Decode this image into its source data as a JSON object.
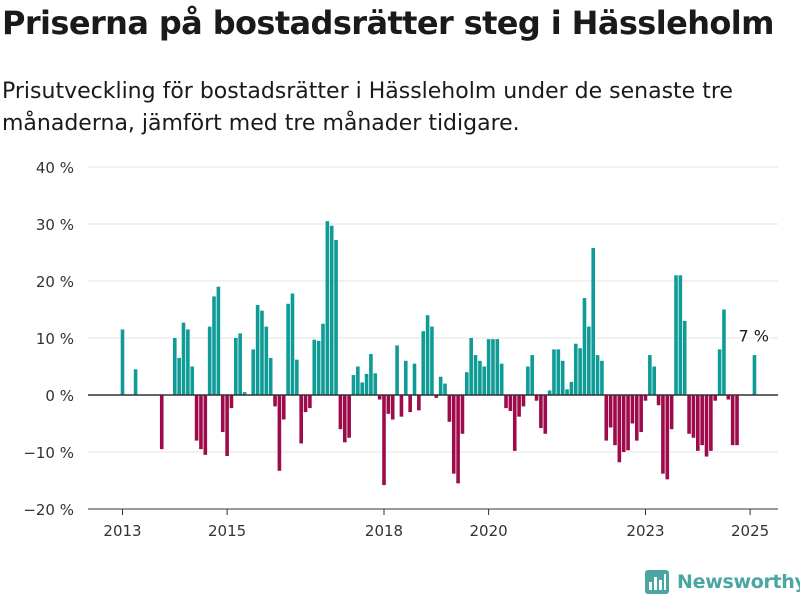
{
  "title": "Priserna på bostadsrätter steg i Hässleholm",
  "subtitle": "Prisutveckling för bostadsrätter i Hässleholm under de senaste tre månaderna, jämfört med tre månader tidigare.",
  "brand": {
    "name": "Newsworthy",
    "icon": "bar-chart-logo-icon"
  },
  "colors": {
    "positive": "#0f9b96",
    "negative": "#9e0a4a",
    "grid": "#e3e3e3",
    "zero_line": "#333333",
    "brand": "#4aa6a0"
  },
  "chart_data": {
    "type": "bar",
    "title": "Priserna på bostadsrätter steg i Hässleholm",
    "subtitle": "Prisutveckling för bostadsrätter i Hässleholm under de senaste tre månaderna, jämfört med tre månader tidigare.",
    "xlabel": "",
    "ylabel": "",
    "y_unit": "%",
    "ylim": [
      -20,
      40
    ],
    "y_ticks": [
      -20,
      -10,
      0,
      10,
      20,
      30,
      40
    ],
    "y_tick_labels": [
      "−20 %",
      "−10 %",
      "0 %",
      "10 %",
      "20 %",
      "30 %",
      "40 %"
    ],
    "x_ticks": [
      2013,
      2015,
      2018,
      2020,
      2023,
      2025
    ],
    "x_tick_labels": [
      "2013",
      "2015",
      "2018",
      "2020",
      "2023",
      "2025"
    ],
    "grid": true,
    "annotation": {
      "text": "7 %",
      "month": "2025-02",
      "value": 7
    },
    "data": [
      [
        "2013-01",
        11.5
      ],
      [
        "2013-04",
        4.5
      ],
      [
        "2013-10",
        -9.5
      ],
      [
        "2014-01",
        10
      ],
      [
        "2014-02",
        6.5
      ],
      [
        "2014-03",
        12.7
      ],
      [
        "2014-04",
        11.5
      ],
      [
        "2014-05",
        5
      ],
      [
        "2014-06",
        -8
      ],
      [
        "2014-07",
        -9.5
      ],
      [
        "2014-08",
        -10.5
      ],
      [
        "2014-09",
        12
      ],
      [
        "2014-10",
        17.3
      ],
      [
        "2014-11",
        19
      ],
      [
        "2014-12",
        -6.5
      ],
      [
        "2015-01",
        -10.7
      ],
      [
        "2015-02",
        -2.3
      ],
      [
        "2015-03",
        10
      ],
      [
        "2015-04",
        10.8
      ],
      [
        "2015-05",
        0.5
      ],
      [
        "2015-07",
        8
      ],
      [
        "2015-08",
        15.8
      ],
      [
        "2015-09",
        14.8
      ],
      [
        "2015-10",
        12
      ],
      [
        "2015-11",
        6.5
      ],
      [
        "2015-12",
        -2
      ],
      [
        "2016-01",
        -13.3
      ],
      [
        "2016-02",
        -4.3
      ],
      [
        "2016-03",
        16
      ],
      [
        "2016-04",
        17.8
      ],
      [
        "2016-05",
        6.2
      ],
      [
        "2016-06",
        -8.5
      ],
      [
        "2016-07",
        -3
      ],
      [
        "2016-08",
        -2.3
      ],
      [
        "2016-09",
        9.7
      ],
      [
        "2016-10",
        9.5
      ],
      [
        "2016-11",
        12.5
      ],
      [
        "2016-12",
        30.5
      ],
      [
        "2017-01",
        29.7
      ],
      [
        "2017-02",
        27.2
      ],
      [
        "2017-03",
        -6
      ],
      [
        "2017-04",
        -8.3
      ],
      [
        "2017-05",
        -7.5
      ],
      [
        "2017-06",
        3.5
      ],
      [
        "2017-07",
        5
      ],
      [
        "2017-08",
        2.2
      ],
      [
        "2017-09",
        3.7
      ],
      [
        "2017-10",
        7.2
      ],
      [
        "2017-11",
        3.8
      ],
      [
        "2017-12",
        -0.8
      ],
      [
        "2018-01",
        -15.8
      ],
      [
        "2018-02",
        -3.3
      ],
      [
        "2018-03",
        -4.3
      ],
      [
        "2018-04",
        8.7
      ],
      [
        "2018-05",
        -3.8
      ],
      [
        "2018-06",
        6
      ],
      [
        "2018-07",
        -3
      ],
      [
        "2018-08",
        5.5
      ],
      [
        "2018-09",
        -2.7
      ],
      [
        "2018-10",
        11.2
      ],
      [
        "2018-11",
        14
      ],
      [
        "2018-12",
        12
      ],
      [
        "2019-01",
        -0.5
      ],
      [
        "2019-02",
        3.2
      ],
      [
        "2019-03",
        2
      ],
      [
        "2019-04",
        -4.7
      ],
      [
        "2019-05",
        -13.8
      ],
      [
        "2019-06",
        -15.5
      ],
      [
        "2019-07",
        -6.8
      ],
      [
        "2019-08",
        4
      ],
      [
        "2019-09",
        10
      ],
      [
        "2019-10",
        7
      ],
      [
        "2019-11",
        6
      ],
      [
        "2019-12",
        5
      ],
      [
        "2020-01",
        9.8
      ],
      [
        "2020-02",
        9.8
      ],
      [
        "2020-03",
        9.8
      ],
      [
        "2020-04",
        5.5
      ],
      [
        "2020-05",
        -2.3
      ],
      [
        "2020-06",
        -2.8
      ],
      [
        "2020-07",
        -9.8
      ],
      [
        "2020-08",
        -3.8
      ],
      [
        "2020-09",
        -2
      ],
      [
        "2020-10",
        5
      ],
      [
        "2020-11",
        7
      ],
      [
        "2020-12",
        -1
      ],
      [
        "2021-01",
        -5.8
      ],
      [
        "2021-02",
        -6.8
      ],
      [
        "2021-03",
        0.8
      ],
      [
        "2021-04",
        8
      ],
      [
        "2021-05",
        8
      ],
      [
        "2021-06",
        6
      ],
      [
        "2021-07",
        1
      ],
      [
        "2021-08",
        2.3
      ],
      [
        "2021-09",
        9
      ],
      [
        "2021-10",
        8.2
      ],
      [
        "2021-11",
        17
      ],
      [
        "2021-12",
        12
      ],
      [
        "2022-01",
        25.8
      ],
      [
        "2022-02",
        7
      ],
      [
        "2022-03",
        6
      ],
      [
        "2022-04",
        -8
      ],
      [
        "2022-05",
        -5.7
      ],
      [
        "2022-06",
        -8.8
      ],
      [
        "2022-07",
        -11.8
      ],
      [
        "2022-08",
        -10
      ],
      [
        "2022-09",
        -9.7
      ],
      [
        "2022-10",
        -5
      ],
      [
        "2022-11",
        -8
      ],
      [
        "2022-12",
        -6.5
      ],
      [
        "2023-01",
        -1
      ],
      [
        "2023-02",
        7
      ],
      [
        "2023-03",
        5
      ],
      [
        "2023-04",
        -1.8
      ],
      [
        "2023-05",
        -13.8
      ],
      [
        "2023-06",
        -14.8
      ],
      [
        "2023-07",
        -6
      ],
      [
        "2023-08",
        21
      ],
      [
        "2023-09",
        21
      ],
      [
        "2023-10",
        13
      ],
      [
        "2023-11",
        -6.8
      ],
      [
        "2023-12",
        -7.5
      ],
      [
        "2024-01",
        -9.8
      ],
      [
        "2024-02",
        -8.8
      ],
      [
        "2024-03",
        -10.8
      ],
      [
        "2024-04",
        -9.8
      ],
      [
        "2024-05",
        -1
      ],
      [
        "2024-06",
        8
      ],
      [
        "2024-07",
        15
      ],
      [
        "2024-08",
        -0.8
      ],
      [
        "2024-09",
        -8.8
      ],
      [
        "2024-10",
        -8.8
      ],
      [
        "2025-02",
        7
      ]
    ]
  }
}
